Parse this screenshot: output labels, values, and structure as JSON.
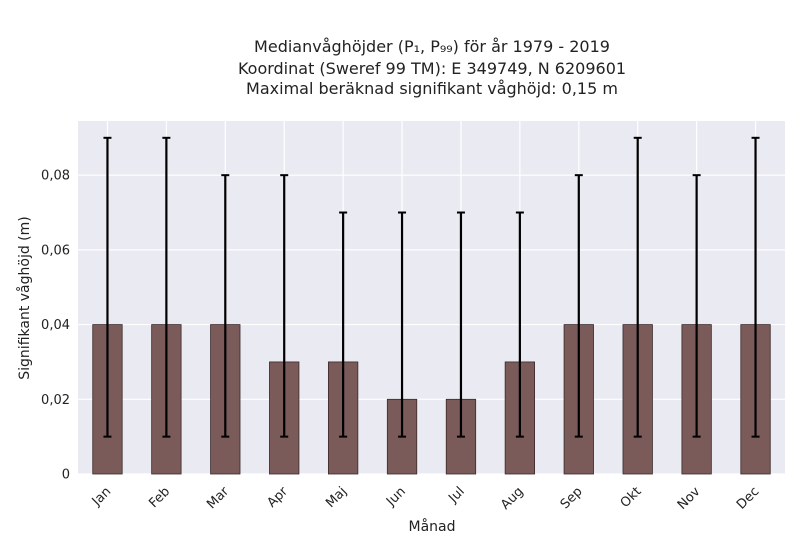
{
  "chart_data": {
    "type": "bar",
    "title_lines": [
      "Medianvåghöjder (P₁, P₉₉) för år 1979 - 2019",
      "Koordinat (Sweref 99 TM): E 349749, N 6209601",
      "Maximal beräknad signifikant våghöjd: 0,15 m"
    ],
    "xlabel": "Månad",
    "ylabel": "Signifikant våghöjd (m)",
    "categories": [
      "Jan",
      "Feb",
      "Mar",
      "Apr",
      "Maj",
      "Jun",
      "Jul",
      "Aug",
      "Sep",
      "Okt",
      "Nov",
      "Dec"
    ],
    "values": [
      0.04,
      0.04,
      0.04,
      0.03,
      0.03,
      0.02,
      0.02,
      0.03,
      0.04,
      0.04,
      0.04,
      0.04
    ],
    "error_low": [
      0.01,
      0.01,
      0.01,
      0.01,
      0.01,
      0.01,
      0.01,
      0.01,
      0.01,
      0.01,
      0.01,
      0.01
    ],
    "error_high": [
      0.09,
      0.09,
      0.08,
      0.08,
      0.07,
      0.07,
      0.07,
      0.07,
      0.08,
      0.09,
      0.08,
      0.09
    ],
    "ylim": [
      0,
      0.0945
    ],
    "yticks": [
      0,
      0.02,
      0.04,
      0.06,
      0.08
    ],
    "ytick_labels": [
      "0",
      "0,02",
      "0,04",
      "0,06",
      "0,08"
    ],
    "grid": true,
    "colors": {
      "bar": "#7b5a5a",
      "bar_edge": "#3a2a2a",
      "error": "#000000",
      "plot_bg": "#eaeaf2",
      "grid": "#ffffff"
    }
  }
}
